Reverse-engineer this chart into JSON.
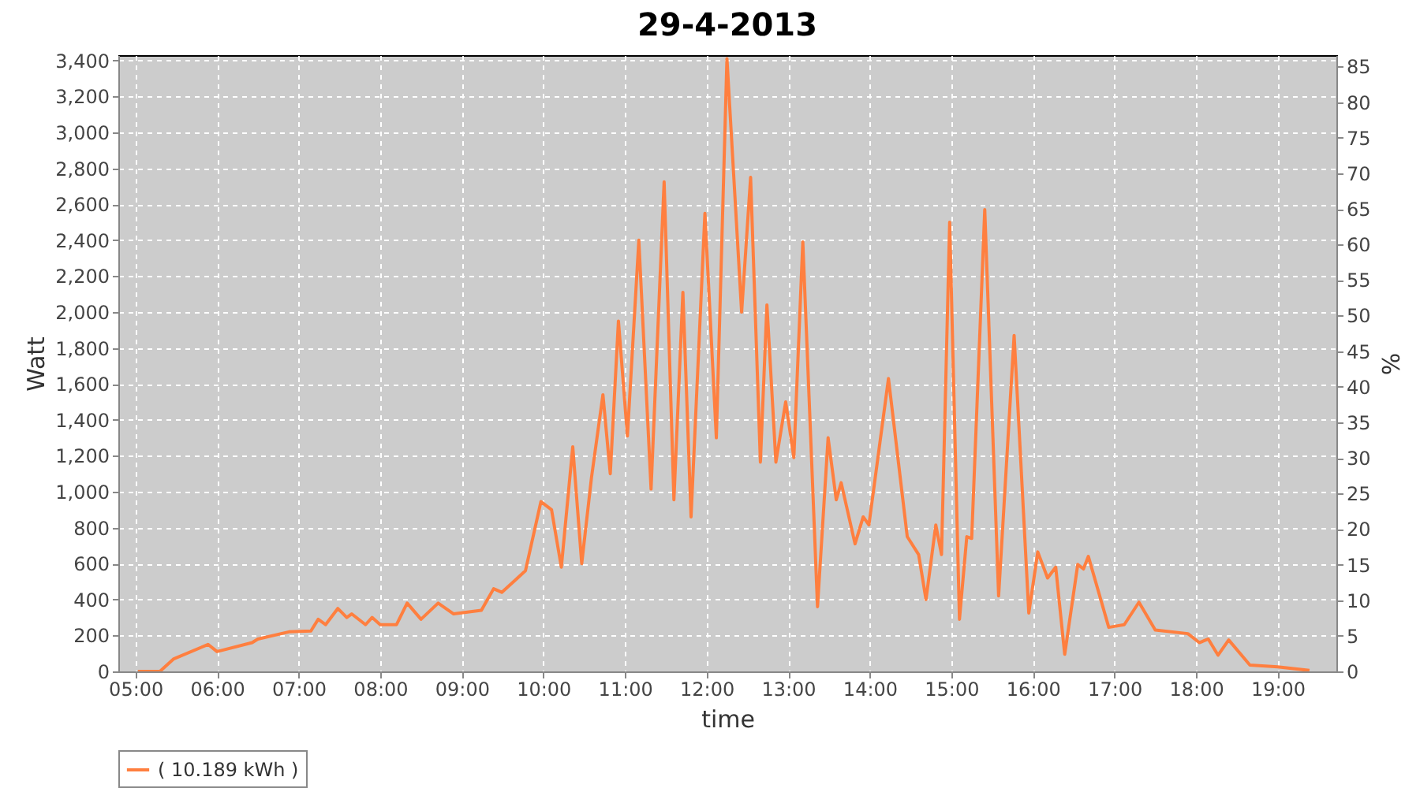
{
  "chart_data": {
    "type": "line",
    "title": "29-4-2013",
    "xlabel": "time",
    "ylabel": "Watt",
    "y2label": "%",
    "x": [
      5.03,
      5.3,
      5.47,
      5.89,
      6.0,
      6.43,
      6.5,
      6.88,
      7.15,
      7.24,
      7.33,
      7.48,
      7.59,
      7.65,
      7.82,
      7.9,
      8.0,
      8.2,
      8.33,
      8.5,
      8.71,
      8.9,
      9.24,
      9.39,
      9.49,
      9.66,
      9.78,
      9.97,
      10.1,
      10.22,
      10.36,
      10.47,
      10.59,
      10.73,
      10.82,
      10.92,
      11.03,
      11.17,
      11.32,
      11.48,
      11.6,
      11.71,
      11.81,
      11.98,
      12.12,
      12.25,
      12.43,
      12.54,
      12.66,
      12.74,
      12.85,
      12.97,
      13.07,
      13.18,
      13.36,
      13.49,
      13.59,
      13.65,
      13.82,
      13.92,
      13.99,
      14.23,
      14.46,
      14.6,
      14.69,
      14.81,
      14.88,
      14.98,
      15.1,
      15.19,
      15.25,
      15.41,
      15.58,
      15.77,
      15.95,
      16.06,
      16.18,
      16.28,
      16.39,
      16.55,
      16.62,
      16.68,
      16.93,
      17.12,
      17.3,
      17.5,
      17.9,
      18.04,
      18.15,
      18.27,
      18.4,
      18.66,
      19.0,
      19.39
    ],
    "series": [
      {
        "name": "( 10.189 kWh )",
        "color": "#ff7f3f",
        "values": [
          0,
          0,
          70,
          150,
          110,
          160,
          180,
          220,
          225,
          290,
          260,
          350,
          300,
          320,
          260,
          300,
          260,
          260,
          380,
          290,
          380,
          320,
          340,
          460,
          440,
          510,
          560,
          945,
          900,
          580,
          1250,
          600,
          1080,
          1540,
          1100,
          1950,
          1310,
          2400,
          1015,
          2725,
          955,
          2110,
          860,
          2550,
          1300,
          3410,
          2000,
          2750,
          1165,
          2040,
          1165,
          1500,
          1190,
          2390,
          360,
          1300,
          955,
          1050,
          710,
          860,
          815,
          1630,
          750,
          650,
          400,
          815,
          650,
          2500,
          290,
          750,
          740,
          2570,
          420,
          1870,
          325,
          665,
          520,
          580,
          95,
          595,
          570,
          640,
          245,
          260,
          385,
          230,
          210,
          160,
          180,
          90,
          175,
          35,
          25,
          5
        ]
      }
    ],
    "xlim": [
      4.79,
      19.72
    ],
    "xticks": [
      {
        "value": 5,
        "label": "05:00"
      },
      {
        "value": 6,
        "label": "06:00"
      },
      {
        "value": 7,
        "label": "07:00"
      },
      {
        "value": 8,
        "label": "08:00"
      },
      {
        "value": 9,
        "label": "09:00"
      },
      {
        "value": 10,
        "label": "10:00"
      },
      {
        "value": 11,
        "label": "11:00"
      },
      {
        "value": 12,
        "label": "12:00"
      },
      {
        "value": 13,
        "label": "13:00"
      },
      {
        "value": 14,
        "label": "14:00"
      },
      {
        "value": 15,
        "label": "15:00"
      },
      {
        "value": 16,
        "label": "16:00"
      },
      {
        "value": 17,
        "label": "17:00"
      },
      {
        "value": 18,
        "label": "18:00"
      },
      {
        "value": 19,
        "label": "19:00"
      }
    ],
    "ylim": [
      0,
      3430
    ],
    "yticks": [
      0,
      200,
      400,
      600,
      800,
      {
        "value": 1000,
        "label": "1,000"
      },
      {
        "value": 1200,
        "label": "1,200"
      },
      {
        "value": 1400,
        "label": "1,400"
      },
      {
        "value": 1600,
        "label": "1,600"
      },
      {
        "value": 1800,
        "label": "1,800"
      },
      {
        "value": 2000,
        "label": "2,000"
      },
      {
        "value": 2200,
        "label": "2,200"
      },
      {
        "value": 2400,
        "label": "2,400"
      },
      {
        "value": 2600,
        "label": "2,600"
      },
      {
        "value": 2800,
        "label": "2,800"
      },
      {
        "value": 3000,
        "label": "3,000"
      },
      {
        "value": 3200,
        "label": "3,200"
      },
      {
        "value": 3400,
        "label": "3,400"
      }
    ],
    "y2lim": [
      0,
      86.6
    ],
    "y2ticks": [
      0,
      5,
      10,
      15,
      20,
      25,
      30,
      35,
      40,
      45,
      50,
      55,
      60,
      65,
      70,
      75,
      80,
      85
    ],
    "grid": true,
    "legend": "bottom",
    "marker": "none",
    "line_style": "solid"
  }
}
